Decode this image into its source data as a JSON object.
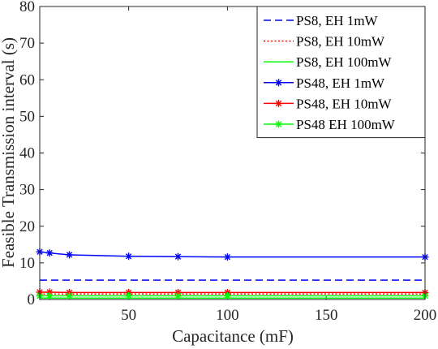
{
  "chart_data": {
    "type": "line",
    "title": "",
    "xlabel": "Capacitance (mF)",
    "ylabel": "Feasible Transmission interval (s)",
    "xlim": [
      5,
      200
    ],
    "ylim": [
      0,
      80
    ],
    "xticks": [
      50,
      100,
      150,
      200
    ],
    "yticks": [
      0,
      10,
      20,
      30,
      40,
      50,
      60,
      70,
      80
    ],
    "x": [
      5,
      10,
      20,
      50,
      75,
      100,
      200
    ],
    "grid": false,
    "legend_position": "top-right",
    "series": [
      {
        "name": "PS8, EH 1mW",
        "values": [
          5.3,
          5.3,
          5.3,
          5.3,
          5.3,
          5.3,
          5.3
        ],
        "color": "#0000ff",
        "style": "dashed",
        "marker": "none"
      },
      {
        "name": "PS8, EH 10mW",
        "values": [
          1.5,
          1.5,
          1.5,
          1.5,
          1.5,
          1.5,
          1.5
        ],
        "color": "#ff0000",
        "style": "dotted",
        "marker": "none"
      },
      {
        "name": "PS8, EH 100mW",
        "values": [
          0.4,
          0.4,
          0.4,
          0.4,
          0.4,
          0.4,
          0.4
        ],
        "color": "#00ff00",
        "style": "solid",
        "marker": "none"
      },
      {
        "name": "PS48, EH 1mW",
        "values": [
          13.0,
          12.7,
          12.2,
          11.8,
          11.7,
          11.6,
          11.6
        ],
        "color": "#0000ff",
        "style": "solid",
        "marker": "asterisk"
      },
      {
        "name": "PS48, EH 10mW",
        "values": [
          2.0,
          2.0,
          1.9,
          1.9,
          1.9,
          1.9,
          1.9
        ],
        "color": "#ff0000",
        "style": "solid",
        "marker": "asterisk"
      },
      {
        "name": "PS48 EH 100mW",
        "values": [
          1.0,
          1.0,
          1.0,
          1.0,
          1.0,
          1.0,
          1.0
        ],
        "color": "#00ff00",
        "style": "solid",
        "marker": "asterisk"
      }
    ]
  }
}
